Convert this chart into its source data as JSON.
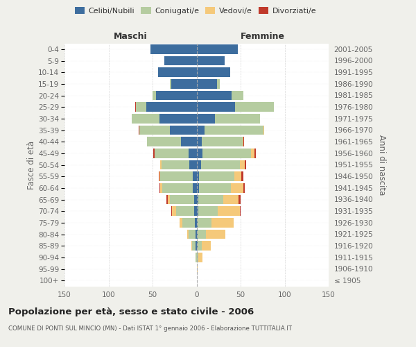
{
  "age_groups": [
    "100+",
    "95-99",
    "90-94",
    "85-89",
    "80-84",
    "75-79",
    "70-74",
    "65-69",
    "60-64",
    "55-59",
    "50-54",
    "45-49",
    "40-44",
    "35-39",
    "30-34",
    "25-29",
    "20-24",
    "15-19",
    "10-14",
    "5-9",
    "0-4"
  ],
  "birth_years": [
    "≤ 1905",
    "1906-1910",
    "1911-1915",
    "1916-1920",
    "1921-1925",
    "1926-1930",
    "1931-1935",
    "1936-1940",
    "1941-1945",
    "1946-1950",
    "1951-1955",
    "1956-1960",
    "1961-1965",
    "1966-1970",
    "1971-1975",
    "1976-1980",
    "1981-1985",
    "1986-1990",
    "1991-1995",
    "1996-2000",
    "2001-2005"
  ],
  "male": {
    "celibi": [
      0,
      0,
      0,
      1,
      1,
      2,
      3,
      3,
      4,
      4,
      8,
      9,
      18,
      30,
      42,
      57,
      46,
      29,
      44,
      37,
      52
    ],
    "coniugati": [
      0,
      0,
      1,
      4,
      8,
      14,
      20,
      27,
      35,
      37,
      32,
      39,
      38,
      35,
      32,
      12,
      4,
      1,
      0,
      0,
      0
    ],
    "vedovi": [
      0,
      0,
      0,
      1,
      2,
      3,
      5,
      3,
      2,
      1,
      1,
      0,
      0,
      0,
      0,
      0,
      0,
      0,
      0,
      0,
      0
    ],
    "divorziati": [
      0,
      0,
      0,
      0,
      0,
      0,
      1,
      1,
      1,
      1,
      0,
      1,
      0,
      1,
      0,
      1,
      0,
      0,
      0,
      0,
      0
    ]
  },
  "female": {
    "nubili": [
      0,
      0,
      0,
      1,
      1,
      1,
      2,
      2,
      3,
      3,
      5,
      7,
      6,
      9,
      21,
      44,
      40,
      23,
      38,
      32,
      47
    ],
    "coniugate": [
      0,
      0,
      2,
      5,
      10,
      16,
      22,
      28,
      36,
      40,
      44,
      55,
      46,
      67,
      51,
      44,
      13,
      3,
      0,
      0,
      0
    ],
    "vedove": [
      0,
      1,
      5,
      10,
      22,
      25,
      25,
      18,
      14,
      8,
      6,
      4,
      1,
      1,
      0,
      0,
      0,
      0,
      0,
      0,
      0
    ],
    "divorziate": [
      0,
      0,
      0,
      0,
      0,
      0,
      1,
      2,
      2,
      2,
      1,
      1,
      1,
      0,
      0,
      0,
      0,
      0,
      0,
      0,
      0
    ]
  },
  "colors": {
    "celibi": "#3d6d9e",
    "coniugati": "#b5cca0",
    "vedovi": "#f5c97a",
    "divorziati": "#c0392b"
  },
  "xlim": 150,
  "title": "Popolazione per età, sesso e stato civile - 2006",
  "subtitle": "COMUNE DI PONTI SUL MINCIO (MN) - Dati ISTAT 1° gennaio 2006 - Elaborazione TUTTITALIA.IT",
  "ylabel_left": "Fasce di età",
  "ylabel_right": "Anni di nascita",
  "bg_color": "#f0f0eb",
  "plot_bg": "#ffffff",
  "grid_color": "#cccccc"
}
